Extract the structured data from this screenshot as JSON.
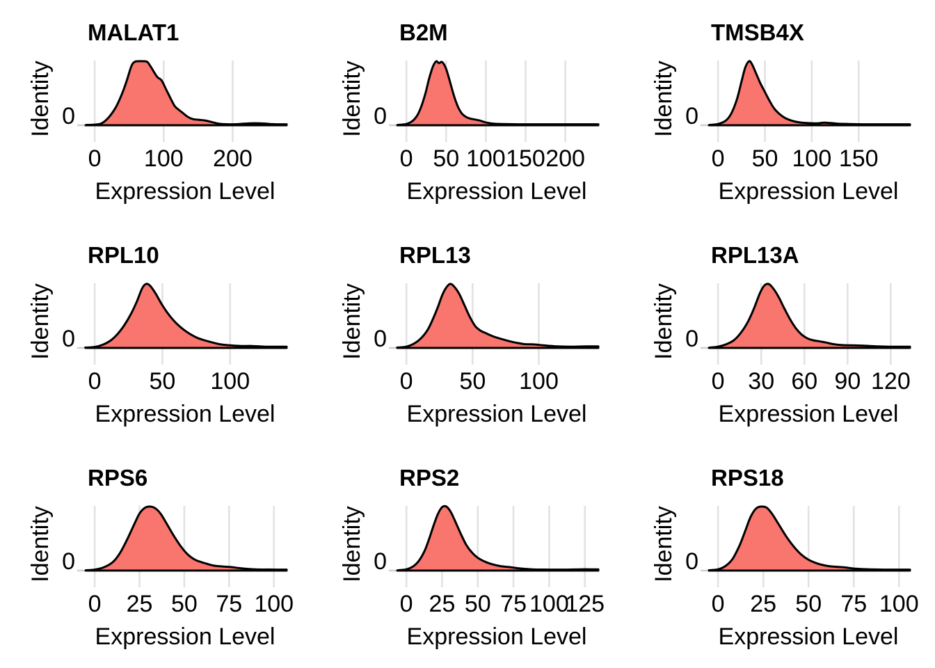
{
  "figure": {
    "background": "#FFFFFF",
    "fill_color": "#F8766D",
    "stroke_color": "#000000",
    "gridline_color": "#E2E2E2",
    "axis_tick_color": "#D0D0D0",
    "text_color": "#000000"
  },
  "chart_data": [
    {
      "type": "area",
      "title": "MALAT1",
      "xlabel": "Expression Level",
      "ylabel": "Identity",
      "y_tick_label": "0",
      "legend": "none",
      "grid": "major-x",
      "x_ticks": [
        0,
        100,
        200
      ],
      "x_data_max": 265,
      "density_x": [
        -12,
        0,
        10,
        20,
        30,
        38,
        46,
        53,
        58,
        64,
        70,
        76,
        81,
        86,
        91,
        97,
        104,
        110,
        116,
        122,
        128,
        135,
        143,
        152,
        160,
        170,
        180,
        195,
        210,
        225,
        240,
        255,
        265
      ],
      "density_y": [
        0.005,
        0.01,
        0.03,
        0.12,
        0.27,
        0.45,
        0.68,
        0.92,
        0.99,
        1.0,
        1.0,
        0.99,
        0.92,
        0.83,
        0.75,
        0.7,
        0.55,
        0.42,
        0.3,
        0.24,
        0.19,
        0.13,
        0.095,
        0.085,
        0.075,
        0.05,
        0.025,
        0.015,
        0.02,
        0.03,
        0.03,
        0.02,
        0.015
      ]
    },
    {
      "type": "area",
      "title": "B2M",
      "xlabel": "Expression Level",
      "ylabel": "Identity",
      "y_tick_label": "0",
      "legend": "none",
      "grid": "major-x",
      "x_ticks": [
        0,
        50,
        100,
        150,
        200
      ],
      "x_data_max": 230,
      "density_x": [
        -11,
        0,
        8,
        14,
        19,
        24,
        28,
        32,
        35,
        38,
        41,
        44,
        47,
        50,
        54,
        58,
        62,
        66,
        70,
        75,
        80,
        86,
        92,
        100,
        110,
        122,
        140,
        165,
        195,
        230
      ],
      "density_y": [
        0.005,
        0.02,
        0.07,
        0.16,
        0.3,
        0.5,
        0.7,
        0.87,
        0.96,
        1.0,
        0.97,
        0.99,
        0.96,
        0.88,
        0.72,
        0.54,
        0.38,
        0.26,
        0.18,
        0.13,
        0.105,
        0.09,
        0.075,
        0.045,
        0.025,
        0.02,
        0.015,
        0.015,
        0.015,
        0.015
      ]
    },
    {
      "type": "area",
      "title": "TMSB4X",
      "xlabel": "Expression Level",
      "ylabel": "Identity",
      "y_tick_label": "0",
      "legend": "none",
      "grid": "major-x",
      "x_ticks": [
        0,
        50,
        100,
        150
      ],
      "x_data_max": 195,
      "density_x": [
        -9,
        0,
        8,
        14,
        20,
        25,
        29,
        33,
        36,
        40,
        45,
        50,
        55,
        60,
        66,
        72,
        79,
        87,
        95,
        105,
        113,
        120,
        128,
        140,
        155,
        175,
        195
      ],
      "density_y": [
        0.005,
        0.02,
        0.07,
        0.18,
        0.4,
        0.68,
        0.9,
        1.0,
        0.96,
        0.83,
        0.66,
        0.52,
        0.38,
        0.26,
        0.17,
        0.11,
        0.07,
        0.045,
        0.035,
        0.03,
        0.04,
        0.035,
        0.025,
        0.02,
        0.015,
        0.015,
        0.015
      ]
    },
    {
      "type": "area",
      "title": "RPL10",
      "xlabel": "Expression Level",
      "ylabel": "Identity",
      "y_tick_label": "0",
      "legend": "none",
      "grid": "major-x",
      "x_ticks": [
        0,
        50,
        100
      ],
      "x_data_max": 135,
      "density_x": [
        -7,
        0,
        6,
        12,
        17,
        22,
        27,
        31,
        35,
        38,
        41,
        45,
        49,
        53,
        57,
        61,
        66,
        71,
        76,
        81,
        87,
        93,
        100,
        108,
        116,
        126,
        135
      ],
      "density_y": [
        0.005,
        0.015,
        0.05,
        0.12,
        0.22,
        0.36,
        0.54,
        0.72,
        0.93,
        1.0,
        0.97,
        0.85,
        0.7,
        0.57,
        0.46,
        0.37,
        0.28,
        0.21,
        0.155,
        0.12,
        0.085,
        0.055,
        0.04,
        0.03,
        0.03,
        0.02,
        0.02
      ]
    },
    {
      "type": "area",
      "title": "RPL13",
      "xlabel": "Expression Level",
      "ylabel": "Identity",
      "y_tick_label": "0",
      "legend": "none",
      "grid": "major-x",
      "x_ticks": [
        0,
        50,
        100
      ],
      "x_data_max": 138,
      "density_x": [
        -7,
        0,
        6,
        11,
        16,
        20,
        24,
        27,
        30,
        33,
        36,
        40,
        44,
        48,
        52,
        56,
        60,
        65,
        70,
        76,
        82,
        89,
        96,
        104,
        114,
        126,
        138
      ],
      "density_y": [
        0.005,
        0.02,
        0.07,
        0.15,
        0.28,
        0.45,
        0.65,
        0.82,
        0.94,
        1.0,
        0.96,
        0.84,
        0.66,
        0.48,
        0.34,
        0.27,
        0.23,
        0.185,
        0.15,
        0.115,
        0.085,
        0.06,
        0.055,
        0.04,
        0.025,
        0.02,
        0.025
      ]
    },
    {
      "type": "area",
      "title": "RPL13A",
      "xlabel": "Expression Level",
      "ylabel": "Identity",
      "y_tick_label": "0",
      "legend": "none",
      "grid": "major-x",
      "x_ticks": [
        0,
        30,
        60,
        90,
        120
      ],
      "x_data_max": 127,
      "density_x": [
        -6,
        0,
        6,
        11,
        16,
        21,
        25,
        29,
        32,
        35,
        38,
        42,
        46,
        50,
        54,
        58,
        62,
        66,
        70,
        75,
        80,
        86,
        93,
        101,
        110,
        119,
        127
      ],
      "density_y": [
        0.005,
        0.02,
        0.06,
        0.12,
        0.24,
        0.42,
        0.62,
        0.85,
        0.97,
        1.0,
        0.94,
        0.8,
        0.62,
        0.45,
        0.31,
        0.21,
        0.15,
        0.12,
        0.105,
        0.085,
        0.06,
        0.045,
        0.04,
        0.035,
        0.025,
        0.02,
        0.02
      ]
    },
    {
      "type": "area",
      "title": "RPS6",
      "xlabel": "Expression Level",
      "ylabel": "Identity",
      "y_tick_label": "0",
      "legend": "none",
      "grid": "major-x",
      "x_ticks": [
        0,
        25,
        50,
        75,
        100
      ],
      "x_data_max": 102,
      "density_x": [
        -5,
        0,
        5,
        10,
        14,
        18,
        22,
        25,
        28,
        31,
        34,
        37,
        40,
        44,
        48,
        52,
        56,
        61,
        66,
        71,
        76,
        82,
        90,
        102
      ],
      "density_y": [
        0.005,
        0.015,
        0.05,
        0.13,
        0.27,
        0.48,
        0.72,
        0.89,
        0.98,
        1.0,
        0.97,
        0.88,
        0.74,
        0.55,
        0.38,
        0.25,
        0.17,
        0.12,
        0.08,
        0.065,
        0.055,
        0.035,
        0.02,
        0.015
      ]
    },
    {
      "type": "area",
      "title": "RPS2",
      "xlabel": "Expression Level",
      "ylabel": "Identity",
      "y_tick_label": "0",
      "legend": "none",
      "grid": "major-x",
      "x_ticks": [
        0,
        25,
        50,
        75,
        100,
        125
      ],
      "x_data_max": 128,
      "density_x": [
        -6,
        0,
        5,
        9,
        13,
        16,
        19,
        22,
        25,
        28,
        31,
        34,
        38,
        42,
        46,
        50,
        55,
        60,
        66,
        72,
        79,
        88,
        100,
        112,
        122,
        128
      ],
      "density_y": [
        0.005,
        0.02,
        0.07,
        0.16,
        0.32,
        0.5,
        0.7,
        0.88,
        0.99,
        1.0,
        0.92,
        0.78,
        0.58,
        0.4,
        0.28,
        0.2,
        0.14,
        0.1,
        0.07,
        0.055,
        0.035,
        0.02,
        0.015,
        0.015,
        0.02,
        0.02
      ]
    },
    {
      "type": "area",
      "title": "RPS18",
      "xlabel": "Expression Level",
      "ylabel": "Identity",
      "y_tick_label": "0",
      "legend": "none",
      "grid": "major-x",
      "x_ticks": [
        0,
        25,
        50,
        75,
        100
      ],
      "x_data_max": 101,
      "density_x": [
        -5,
        0,
        4,
        8,
        12,
        15,
        18,
        21,
        24,
        27,
        30,
        34,
        38,
        42,
        46,
        50,
        55,
        60,
        65,
        70,
        76,
        84,
        92,
        101
      ],
      "density_y": [
        0.005,
        0.02,
        0.07,
        0.18,
        0.4,
        0.62,
        0.84,
        0.97,
        1.0,
        0.98,
        0.88,
        0.7,
        0.52,
        0.37,
        0.25,
        0.17,
        0.11,
        0.075,
        0.06,
        0.05,
        0.03,
        0.02,
        0.015,
        0.015
      ]
    }
  ]
}
